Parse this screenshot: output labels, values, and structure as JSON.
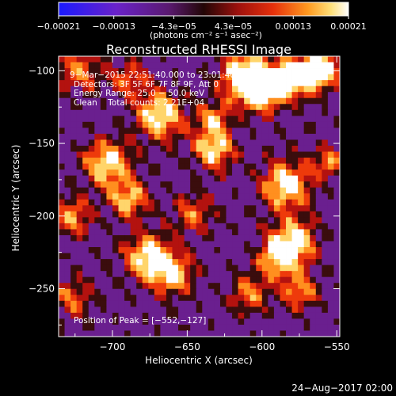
{
  "chart_data": {
    "type": "heatmap",
    "title": "Reconstructed RHESSI Image",
    "xlabel": "Heliocentric X (arcsec)",
    "ylabel": "Heliocentric Y (arcsec)",
    "xlim": [
      -736,
      -548
    ],
    "ylim": [
      -283,
      -90
    ],
    "x_ticks": [
      -700,
      -650,
      -600,
      -550
    ],
    "y_ticks": [
      -250,
      -200,
      -150,
      -100
    ],
    "x_tick_labels": [
      "−700",
      "−650",
      "−600",
      "−550"
    ],
    "y_tick_labels": [
      "−250",
      "−200",
      "−150",
      "−100"
    ],
    "colorbar": {
      "range": [
        -0.00021,
        0.00021
      ],
      "tick_values": [
        -0.00021,
        -0.00013,
        -4.3e-05,
        4.3e-05,
        0.00013,
        0.00021
      ],
      "tick_labels": [
        "−0.00021",
        "−0.00013",
        "−4.3e−05",
        "4.3e−05",
        "0.00013",
        "0.00021"
      ],
      "colors": [
        "#1a1aff",
        "#7a22c9",
        "#6a1f8f",
        "#3a0d0d",
        "#b3120f",
        "#ee3a0b",
        "#ff8f1f",
        "#ffd56b",
        "#ffffff"
      ]
    },
    "units_label": "(photons cm⁻² s⁻¹ asec⁻²)",
    "annotations": [
      "9−Mar−2015 22:51:40.000  to 23:01:40.000",
      "Detectors: 3F 5F 6F 7F 8F 9F, Att 0",
      "Energy Range: 25.0 − 50.0 keV",
      "Clean    Total counts: 2.21E+04",
      "Position of Peak = [−552,−127]"
    ],
    "peak_position": [
      -552,
      -127
    ],
    "grid": false,
    "timestamp": "24−Aug−2017 02:00"
  }
}
